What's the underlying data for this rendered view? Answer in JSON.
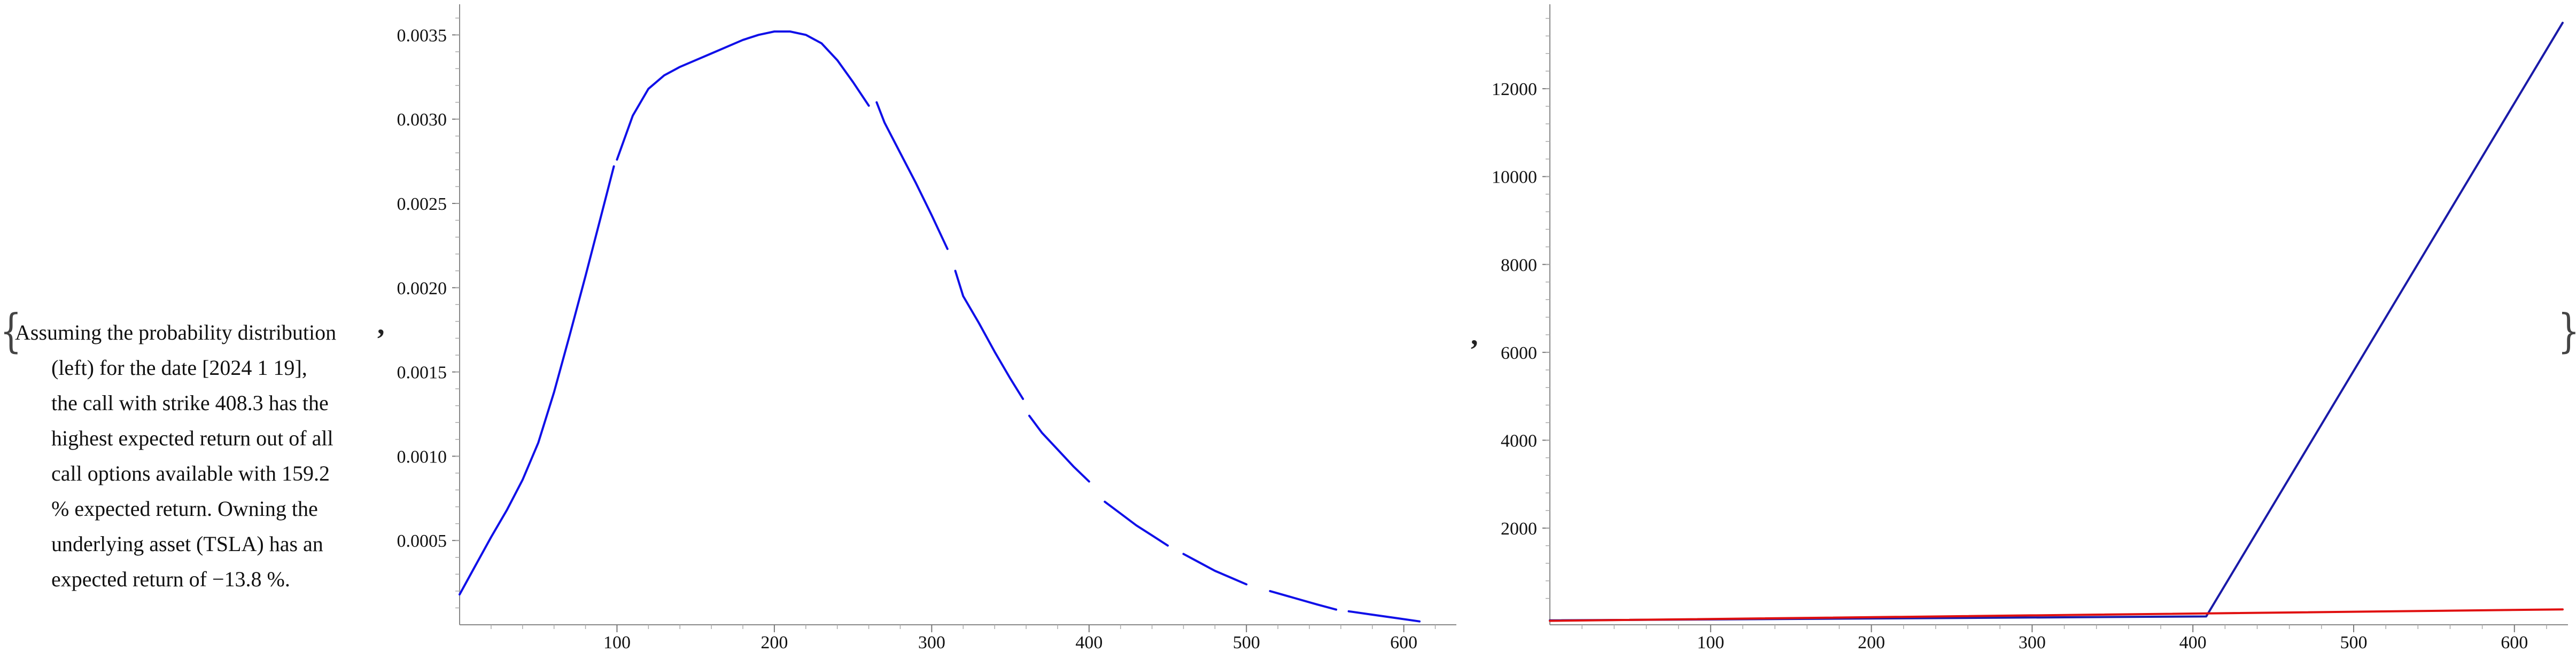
{
  "caption": {
    "open_brace": "{",
    "close_brace": "}",
    "separator_1": ",",
    "separator_2": ",",
    "lines": [
      "Assuming the probability distribution",
      "(left) for the date [2024 1 19],",
      "the call with strike 408.3 has the",
      "highest expected return out of all",
      "call options available with 159.2",
      "% expected return. Owning the",
      "underlying asset (TSLA) has an",
      "expected return of −13.8 %."
    ]
  },
  "chart_data": [
    {
      "type": "line",
      "title": "",
      "xlabel": "",
      "ylabel": "",
      "xlim": [
        0,
        630
      ],
      "ylim": [
        0,
        0.00365
      ],
      "x_ticks": [
        100,
        200,
        300,
        400,
        500,
        600
      ],
      "x_tick_labels": [
        "100",
        "200",
        "300",
        "400",
        "500",
        "600"
      ],
      "y_ticks": [
        0.0005,
        0.001,
        0.0015,
        0.002,
        0.0025,
        0.003,
        0.0035
      ],
      "y_tick_labels": [
        "0.0005",
        "0.0010",
        "0.0015",
        "0.0020",
        "0.0025",
        "0.0030",
        "0.0035"
      ],
      "grid": false,
      "series": [
        {
          "color": "#1010e8",
          "segments": [
            {
              "x": [
                0,
                10,
                20,
                30,
                40,
                50,
                60,
                70,
                80,
                90,
                98
              ],
              "y": [
                0.00018,
                0.00035,
                0.00052,
                0.00068,
                0.00086,
                0.00108,
                0.00138,
                0.00172,
                0.00207,
                0.00243,
                0.00272
              ]
            },
            {
              "x": [
                100,
                110,
                120,
                130,
                140,
                150,
                160,
                170,
                180,
                190,
                200,
                210,
                220,
                230,
                240,
                250,
                260
              ],
              "y": [
                0.00276,
                0.00302,
                0.00318,
                0.00326,
                0.00331,
                0.00335,
                0.00339,
                0.00343,
                0.00347,
                0.0035,
                0.00352,
                0.00352,
                0.0035,
                0.00345,
                0.00335,
                0.00322,
                0.00308
              ]
            },
            {
              "x": [
                265,
                270,
                280,
                290,
                300,
                310
              ],
              "y": [
                0.0031,
                0.00298,
                0.0028,
                0.00262,
                0.00243,
                0.00223
              ]
            },
            {
              "x": [
                315,
                320,
                330,
                340,
                350,
                358
              ],
              "y": [
                0.0021,
                0.00195,
                0.00179,
                0.00162,
                0.00146,
                0.00134
              ]
            },
            {
              "x": [
                362,
                370,
                380,
                390,
                400
              ],
              "y": [
                0.00124,
                0.00114,
                0.00104,
                0.00094,
                0.00085
              ]
            },
            {
              "x": [
                410,
                420,
                430,
                440,
                450
              ],
              "y": [
                0.00073,
                0.00066,
                0.00059,
                0.00053,
                0.00047
              ]
            },
            {
              "x": [
                460,
                470,
                480,
                490,
                500
              ],
              "y": [
                0.00042,
                0.00037,
                0.00032,
                0.00028,
                0.00024
              ]
            },
            {
              "x": [
                515,
                530,
                545,
                557
              ],
              "y": [
                0.0002,
                0.00016,
                0.00012,
                9e-05
              ]
            },
            {
              "x": [
                565,
                580,
                595,
                610
              ],
              "y": [
                8e-05,
                6e-05,
                4e-05,
                2e-05
              ]
            }
          ]
        }
      ]
    },
    {
      "type": "line",
      "title": "",
      "xlabel": "",
      "ylabel": "",
      "xlim": [
        0,
        630
      ],
      "ylim": [
        -200,
        13800
      ],
      "x_ticks": [
        100,
        200,
        300,
        400,
        500,
        600
      ],
      "x_tick_labels": [
        "100",
        "200",
        "300",
        "400",
        "500",
        "600"
      ],
      "y_ticks": [
        2000,
        4000,
        6000,
        8000,
        10000,
        12000
      ],
      "y_tick_labels": [
        "2000",
        "4000",
        "6000",
        "8000",
        "10000",
        "12000"
      ],
      "grid": false,
      "series": [
        {
          "color": "#1a1aa8",
          "x": [
            0,
            408.3,
            630
          ],
          "y": [
            -100,
            -10,
            13500
          ]
        },
        {
          "color": "#e01010",
          "x": [
            0,
            630
          ],
          "y": [
            -110,
            150
          ]
        }
      ]
    }
  ]
}
